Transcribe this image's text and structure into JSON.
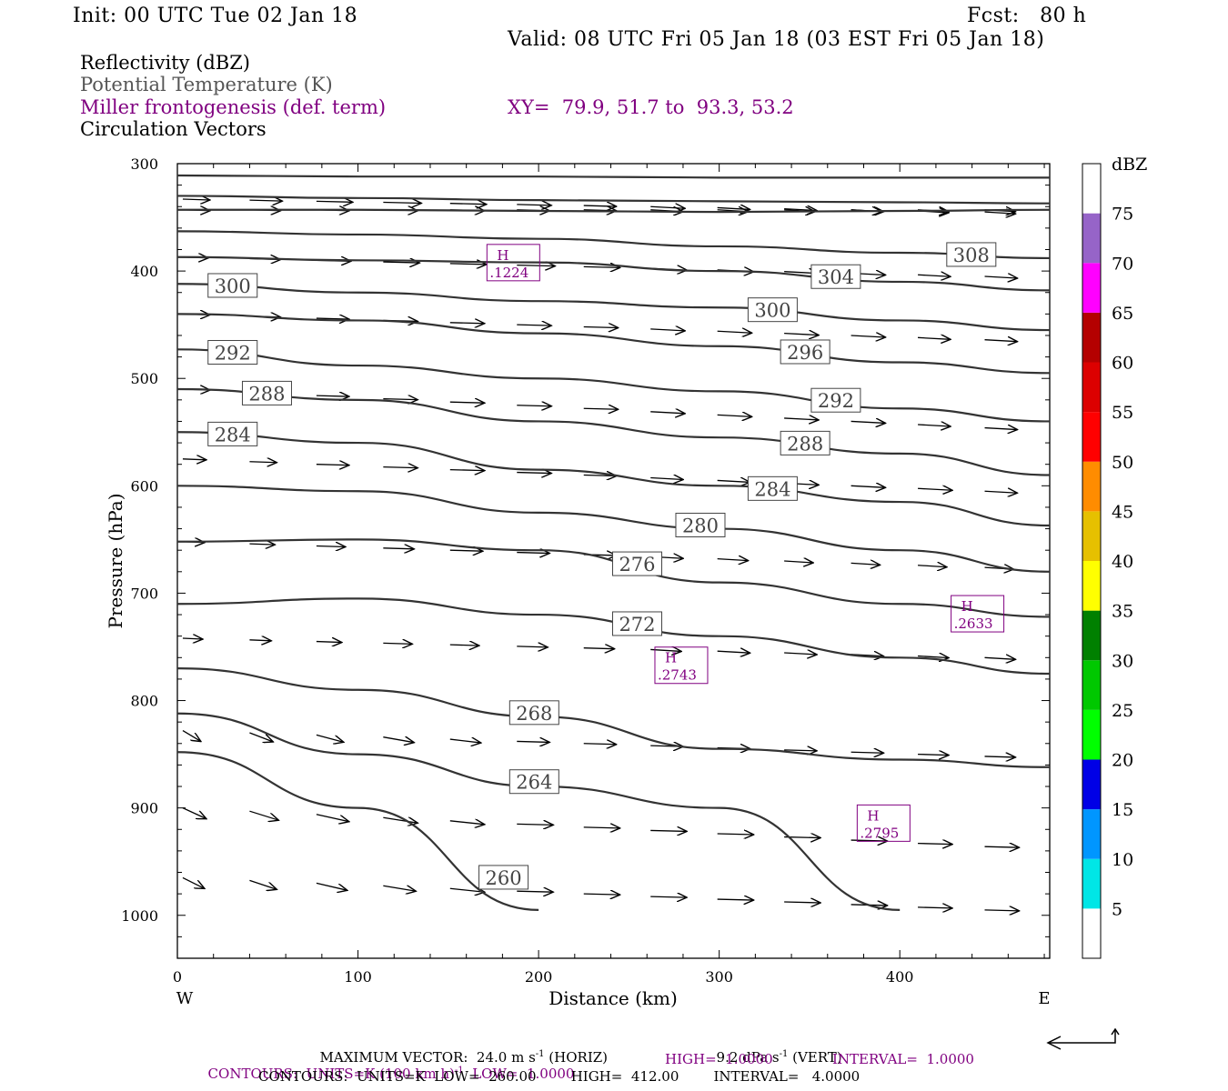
{
  "header": {
    "init": "Init: 00 UTC Tue 02 Jan 18",
    "fcst": "Fcst:   80 h",
    "valid": "Valid: 08 UTC Fri 05 Jan 18 (03 EST Fri 05 Jan 18)",
    "field1": "Reflectivity (dBZ)",
    "field2": "Potential Temperature (K)",
    "field3": "Miller frontogenesis (def. term)",
    "field4": "Circulation Vectors",
    "xy": "XY=  79.9, 51.7 to  93.3, 53.2"
  },
  "footer": {
    "max_vector_a": "MAXIMUM VECTOR:  24.0 m s",
    "max_vector_b": " (HORIZ)",
    "max_vector_c": "9.2 dPa s",
    "max_vector_d": " (VERT)",
    "sup": "-1",
    "contours1_a": "CONTOURS:  UNITS=K (100 km h)",
    "contours1_b": "  LOW=  1.0000",
    "contours1_c": "HIGH=  1.0000",
    "contours1_d": "INTERVAL=  1.0000",
    "contours2": "CONTOURS:  UNITS=K  LOW=  260.00        HIGH=  412.00        INTERVAL=   4.0000"
  },
  "chart_data": {
    "type": "line",
    "xlabel": "Distance (km)",
    "ylabel": "Pressure (hPa)",
    "xlim": [
      0,
      483
    ],
    "ylim": [
      1040,
      300
    ],
    "x_ticks": [
      0,
      100,
      200,
      300,
      400
    ],
    "y_ticks": [
      300,
      400,
      500,
      600,
      700,
      800,
      900,
      1000
    ],
    "x_end_labels": {
      "left": "W",
      "right": "E"
    },
    "colorbar": {
      "unit": "dBZ",
      "levels": [
        "5",
        "10",
        "15",
        "20",
        "25",
        "30",
        "35",
        "40",
        "45",
        "50",
        "55",
        "60",
        "65",
        "70",
        "75"
      ],
      "colors": [
        "#ffffff",
        "#00e6e6",
        "#0096ff",
        "#0000e6",
        "#00ff00",
        "#00c800",
        "#008000",
        "#ffff00",
        "#e6c000",
        "#ff8c00",
        "#ff0000",
        "#dc0000",
        "#b40000",
        "#ff00ff",
        "#9664c8",
        "#ffffff"
      ]
    },
    "theta_contours": [
      {
        "label": "",
        "x": [
          0,
          100,
          200,
          300,
          400,
          483
        ],
        "y": [
          311,
          312,
          312,
          313,
          313,
          313
        ]
      },
      {
        "label": "",
        "x": [
          0,
          100,
          200,
          300,
          400,
          483
        ],
        "y": [
          330,
          332,
          334,
          335,
          336,
          337
        ]
      },
      {
        "label": "",
        "x": [
          0,
          100,
          200,
          300,
          400,
          483
        ],
        "y": [
          343,
          343,
          344,
          345,
          344,
          343
        ]
      },
      {
        "label": "308",
        "x": [
          0,
          100,
          200,
          300,
          400,
          483
        ],
        "y": [
          363,
          366,
          370,
          377,
          383,
          388
        ]
      },
      {
        "label": "304",
        "x": [
          0,
          100,
          200,
          300,
          400,
          483
        ],
        "y": [
          387,
          390,
          392,
          400,
          410,
          418
        ]
      },
      {
        "label": "300",
        "x": [
          0,
          100,
          200,
          300,
          400,
          483
        ],
        "y": [
          412,
          420,
          428,
          434,
          446,
          455
        ]
      },
      {
        "label": "296",
        "x": [
          0,
          100,
          200,
          300,
          400,
          483
        ],
        "y": [
          440,
          446,
          458,
          470,
          485,
          495
        ]
      },
      {
        "label": "292",
        "x": [
          0,
          100,
          200,
          300,
          400,
          483
        ],
        "y": [
          473,
          488,
          500,
          512,
          528,
          540
        ]
      },
      {
        "label": "288",
        "x": [
          0,
          100,
          200,
          300,
          400,
          483
        ],
        "y": [
          510,
          520,
          540,
          555,
          570,
          590
        ]
      },
      {
        "label": "284",
        "x": [
          0,
          100,
          200,
          300,
          400,
          483
        ],
        "y": [
          550,
          560,
          585,
          600,
          615,
          637
        ]
      },
      {
        "label": "280",
        "x": [
          0,
          100,
          200,
          300,
          400,
          483
        ],
        "y": [
          600,
          605,
          625,
          640,
          660,
          680
        ]
      },
      {
        "label": "276",
        "x": [
          0,
          100,
          200,
          300,
          400,
          483
        ],
        "y": [
          652,
          650,
          660,
          690,
          710,
          722
        ]
      },
      {
        "label": "272",
        "x": [
          0,
          100,
          200,
          300,
          400,
          483
        ],
        "y": [
          710,
          705,
          720,
          740,
          760,
          775
        ]
      },
      {
        "label": "268",
        "x": [
          0,
          100,
          200,
          300,
          400,
          483
        ],
        "y": [
          770,
          790,
          815,
          845,
          855,
          862
        ]
      },
      {
        "label": "264",
        "x": [
          0,
          100,
          200,
          300,
          400
        ],
        "y": [
          812,
          850,
          880,
          900,
          995
        ]
      },
      {
        "label": "260",
        "x": [
          0,
          100,
          200
        ],
        "y": [
          848,
          900,
          995
        ]
      }
    ],
    "frontogenesis_maxima": [
      {
        "label": "H",
        "value": ".1224",
        "x": 185,
        "y": 393
      },
      {
        "label": "H",
        "value": ".2743",
        "x": 278,
        "y": 768
      },
      {
        "label": "H",
        "value": ".2633",
        "x": 442,
        "y": 720
      },
      {
        "label": "H",
        "value": ".2795",
        "x": 390,
        "y": 915
      }
    ],
    "legend_position": "right"
  }
}
